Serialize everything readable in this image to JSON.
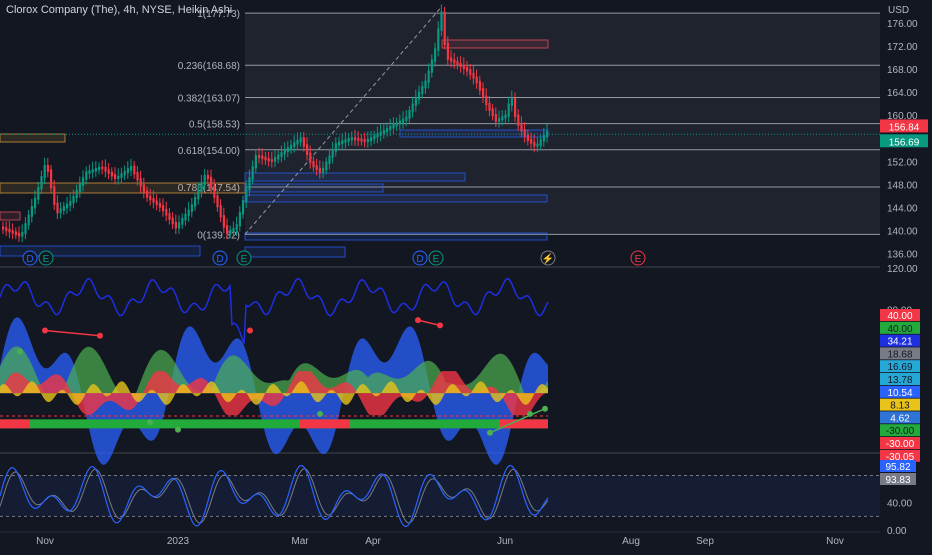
{
  "header": {
    "title": "Clorox Company (The), 4h, NYSE, Heikin Ashi",
    "currency": "USD"
  },
  "chart_data": [
    {
      "type": "candlestick",
      "style": "heikin-ashi",
      "ylim": [
        134,
        180
      ],
      "y_ticks": [
        "136.00",
        "140.00",
        "144.00",
        "148.00",
        "152.00",
        "156.00",
        "160.00",
        "164.00",
        "168.00",
        "172.00",
        "176.00"
      ],
      "price_series": [
        {
          "x": 0,
          "y": 140.5
        },
        {
          "x": 20,
          "y": 139
        },
        {
          "x": 35,
          "y": 146
        },
        {
          "x": 45,
          "y": 152
        },
        {
          "x": 55,
          "y": 143
        },
        {
          "x": 70,
          "y": 145
        },
        {
          "x": 85,
          "y": 150
        },
        {
          "x": 100,
          "y": 151
        },
        {
          "x": 115,
          "y": 149
        },
        {
          "x": 130,
          "y": 151
        },
        {
          "x": 145,
          "y": 146
        },
        {
          "x": 160,
          "y": 144
        },
        {
          "x": 175,
          "y": 140.5
        },
        {
          "x": 190,
          "y": 144
        },
        {
          "x": 205,
          "y": 150
        },
        {
          "x": 215,
          "y": 145
        },
        {
          "x": 225,
          "y": 139.5
        },
        {
          "x": 235,
          "y": 140.5
        },
        {
          "x": 245,
          "y": 147
        },
        {
          "x": 255,
          "y": 153
        },
        {
          "x": 270,
          "y": 152
        },
        {
          "x": 285,
          "y": 154
        },
        {
          "x": 300,
          "y": 156
        },
        {
          "x": 310,
          "y": 151.5
        },
        {
          "x": 320,
          "y": 150
        },
        {
          "x": 335,
          "y": 155
        },
        {
          "x": 350,
          "y": 156
        },
        {
          "x": 365,
          "y": 155.5
        },
        {
          "x": 380,
          "y": 157
        },
        {
          "x": 395,
          "y": 158.5
        },
        {
          "x": 405,
          "y": 159.5
        },
        {
          "x": 415,
          "y": 163
        },
        {
          "x": 425,
          "y": 166
        },
        {
          "x": 435,
          "y": 172
        },
        {
          "x": 440,
          "y": 178.5
        },
        {
          "x": 445,
          "y": 170
        },
        {
          "x": 455,
          "y": 169
        },
        {
          "x": 465,
          "y": 168
        },
        {
          "x": 475,
          "y": 166
        },
        {
          "x": 485,
          "y": 162
        },
        {
          "x": 495,
          "y": 159
        },
        {
          "x": 505,
          "y": 160
        },
        {
          "x": 510,
          "y": 163.5
        },
        {
          "x": 515,
          "y": 159
        },
        {
          "x": 525,
          "y": 156
        },
        {
          "x": 535,
          "y": 154.5
        },
        {
          "x": 545,
          "y": 157
        }
      ],
      "fibonacci": [
        {
          "label": "1(177.73)",
          "value": 177.73
        },
        {
          "label": "0.236(168.68)",
          "value": 168.68
        },
        {
          "label": "0.382(163.07)",
          "value": 163.07
        },
        {
          "label": "0.5(158.53)",
          "value": 158.53
        },
        {
          "label": "0.618(154.00)",
          "value": 154.0
        },
        {
          "label": "0.786(147.54)",
          "value": 147.54
        },
        {
          "label": "0(139.32)",
          "value": 139.32
        }
      ],
      "price_badges": [
        {
          "label": "156.84",
          "color": "#f23645",
          "value": 156.84
        },
        {
          "label": "156.69",
          "color": "#089981",
          "value": 156.69
        }
      ],
      "event_markers": [
        "D",
        "E",
        "D",
        "E",
        "D",
        "E",
        "⚡",
        "E"
      ]
    },
    {
      "type": "area",
      "ylim": [
        -45,
        120
      ],
      "y_ticks": [
        "120.00",
        "80.00"
      ],
      "badges": [
        {
          "label": "40.00",
          "color": "#f23645"
        },
        {
          "label": "40.00",
          "color": "#22ab3a"
        },
        {
          "label": "34.21",
          "color": "#1e2fe0"
        },
        {
          "label": "18.68",
          "color": "#787b86"
        },
        {
          "label": "16.69",
          "color": "#26a8d6"
        },
        {
          "label": "13.78",
          "color": "#26a8d6"
        },
        {
          "label": "10.54",
          "color": "#2962ff"
        },
        {
          "label": "8.13",
          "color": "#e8c31a"
        },
        {
          "label": "4.62",
          "color": "#2d74d6"
        },
        {
          "label": "-30.00",
          "color": "#22ab3a"
        },
        {
          "label": "-30.00",
          "color": "#f23645"
        },
        {
          "label": "-30.05",
          "color": "#f23645"
        }
      ]
    },
    {
      "type": "line",
      "ylim": [
        0,
        110
      ],
      "y_ticks": [
        "40.00",
        "0.00"
      ],
      "badges": [
        {
          "label": "95.82",
          "color": "#2962ff"
        },
        {
          "label": "93.83",
          "color": "#787b86"
        }
      ]
    }
  ],
  "x_axis": {
    "ticks": [
      "Nov",
      "2023",
      "Mar",
      "Apr",
      "Jun",
      "Aug",
      "Sep",
      "Nov"
    ]
  }
}
